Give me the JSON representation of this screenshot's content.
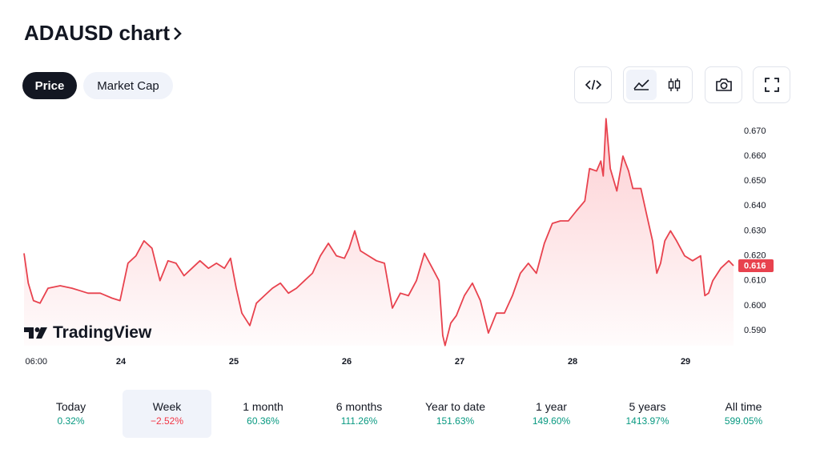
{
  "header": {
    "title": "ADAUSD chart"
  },
  "tabs": [
    "Price",
    "Market Cap"
  ],
  "watermark": "TradingView",
  "chart_data": {
    "type": "line",
    "x": [
      3.4,
      4.3,
      5.4,
      6.8,
      8.5,
      11.1,
      13.6,
      15.3,
      17.0,
      19.6,
      22.1,
      23.8,
      25.5,
      27.2,
      28.9,
      30.6,
      32.3,
      34.0,
      35.7,
      37.4,
      39.1,
      40.8,
      42.6,
      44.3,
      46.0,
      47.3,
      48.5,
      49.7,
      51.4,
      52.8,
      54.5,
      56.2,
      57.9,
      59.6,
      61.3,
      63.0,
      64.7,
      66.4,
      68.1,
      69.8,
      71.5,
      72.5,
      73.7,
      74.9,
      76.6,
      78.3,
      80.0,
      81.7,
      83.4,
      85.1,
      86.8,
      88.5,
      90.2,
      91.6,
      92.4,
      92.9,
      94.1,
      95.3,
      97.0,
      98.7,
      100.4,
      102.1,
      103.8,
      105.5,
      107.2,
      108.9,
      110.6,
      112.3,
      114.0,
      115.7,
      117.4,
      119.1,
      120.8,
      122.6,
      123.6,
      125.1,
      126.0,
      126.5,
      127.1,
      128.0,
      129.4,
      130.7,
      131.9,
      132.8,
      134.5,
      135.8,
      137.0,
      137.9,
      138.7,
      139.6,
      140.8,
      142.1,
      143.8,
      145.5,
      147.2,
      148.1,
      148.9,
      149.8,
      151.5,
      153.2,
      154.2
    ],
    "series": [
      {
        "color": "#e8424e",
        "values": [
          0.621,
          0.609,
          0.602,
          0.601,
          0.607,
          0.608,
          0.607,
          0.606,
          0.605,
          0.605,
          0.603,
          0.602,
          0.617,
          0.62,
          0.626,
          0.623,
          0.61,
          0.618,
          0.617,
          0.612,
          0.615,
          0.618,
          0.615,
          0.617,
          0.615,
          0.619,
          0.607,
          0.597,
          0.592,
          0.601,
          0.604,
          0.607,
          0.609,
          0.605,
          0.607,
          0.61,
          0.613,
          0.62,
          0.625,
          0.62,
          0.619,
          0.623,
          0.63,
          0.622,
          0.62,
          0.618,
          0.617,
          0.599,
          0.605,
          0.604,
          0.61,
          0.621,
          0.615,
          0.61,
          0.588,
          0.584,
          0.593,
          0.596,
          0.604,
          0.609,
          0.602,
          0.589,
          0.597,
          0.597,
          0.604,
          0.613,
          0.617,
          0.613,
          0.625,
          0.633,
          0.634,
          0.634,
          0.638,
          0.642,
          0.655,
          0.654,
          0.658,
          0.652,
          0.675,
          0.655,
          0.646,
          0.66,
          0.654,
          0.647,
          0.647,
          0.636,
          0.626,
          0.613,
          0.617,
          0.626,
          0.63,
          0.626,
          0.62,
          0.618,
          0.62,
          0.604,
          0.605,
          0.61,
          0.615,
          0.618,
          0.616
        ]
      }
    ],
    "xlim": [
      3.4,
      154.2
    ],
    "xticks": [
      {
        "value": 6,
        "label": "06:00"
      },
      {
        "value": 24,
        "label": "24"
      },
      {
        "value": 48,
        "label": "25"
      },
      {
        "value": 72,
        "label": "26"
      },
      {
        "value": 96,
        "label": "27"
      },
      {
        "value": 120,
        "label": "28"
      },
      {
        "value": 144,
        "label": "29"
      }
    ],
    "ylim": [
      0.5839,
      0.6751
    ],
    "yticks": [
      {
        "value": 0.59,
        "label": "0.590"
      },
      {
        "value": 0.6,
        "label": "0.600"
      },
      {
        "value": 0.61,
        "label": "0.610"
      },
      {
        "value": 0.62,
        "label": "0.620"
      },
      {
        "value": 0.63,
        "label": "0.630"
      },
      {
        "value": 0.64,
        "label": "0.640"
      },
      {
        "value": 0.65,
        "label": "0.650"
      },
      {
        "value": 0.66,
        "label": "0.660"
      },
      {
        "value": 0.67,
        "label": "0.670"
      }
    ],
    "last_value": 0.616
  },
  "periods": [
    {
      "label": "Today",
      "change": "0.32%"
    },
    {
      "label": "Week",
      "change": "−2.52%"
    },
    {
      "label": "1 month",
      "change": "60.36%"
    },
    {
      "label": "6 months",
      "change": "111.26%"
    },
    {
      "label": "Year to date",
      "change": "151.63%"
    },
    {
      "label": "1 year",
      "change": "149.60%"
    },
    {
      "label": "5 years",
      "change": "1413.97%"
    },
    {
      "label": "All time",
      "change": "599.05%"
    }
  ]
}
